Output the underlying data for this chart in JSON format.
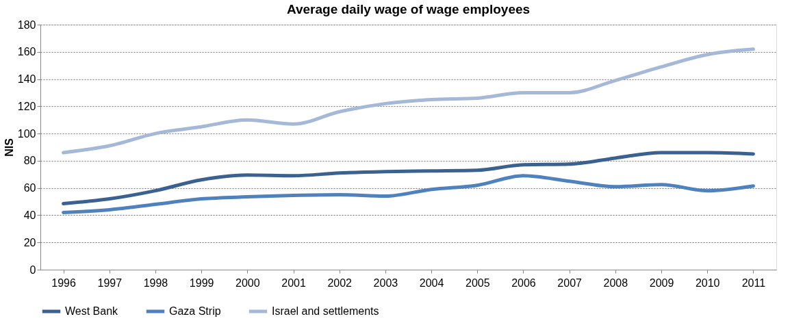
{
  "chart_data": {
    "type": "line",
    "title": "Average daily wage of wage employees",
    "ylabel": "NIS",
    "categories": [
      "1996",
      "1997",
      "1998",
      "1999",
      "2000",
      "2001",
      "2002",
      "2003",
      "2004",
      "2005",
      "2006",
      "2007",
      "2008",
      "2009",
      "2010",
      "2011"
    ],
    "series": [
      {
        "name": "West Bank",
        "color": "#3b6190",
        "values": [
          48.5,
          52,
          58,
          66,
          69.5,
          69,
          71,
          72,
          72.5,
          73,
          77,
          77.5,
          82,
          86,
          86,
          85
        ]
      },
      {
        "name": "Gaza Strip",
        "color": "#4f81bd",
        "values": [
          42,
          44,
          48,
          52,
          53.5,
          54.5,
          55,
          54,
          59,
          62,
          69,
          65,
          61,
          62.5,
          58,
          61.5
        ]
      },
      {
        "name": "Israel and settlements",
        "color": "#a5b8d8",
        "values": [
          86,
          91,
          100,
          105,
          110,
          107,
          116,
          122,
          125,
          126,
          130,
          130,
          139,
          149,
          158,
          162
        ]
      }
    ],
    "ylim": [
      0,
      180
    ],
    "yticks": [
      0,
      20,
      40,
      60,
      80,
      100,
      120,
      140,
      160,
      180
    ],
    "grid": "y",
    "legend": "bottom",
    "line_style": "solid",
    "marker": "none"
  }
}
